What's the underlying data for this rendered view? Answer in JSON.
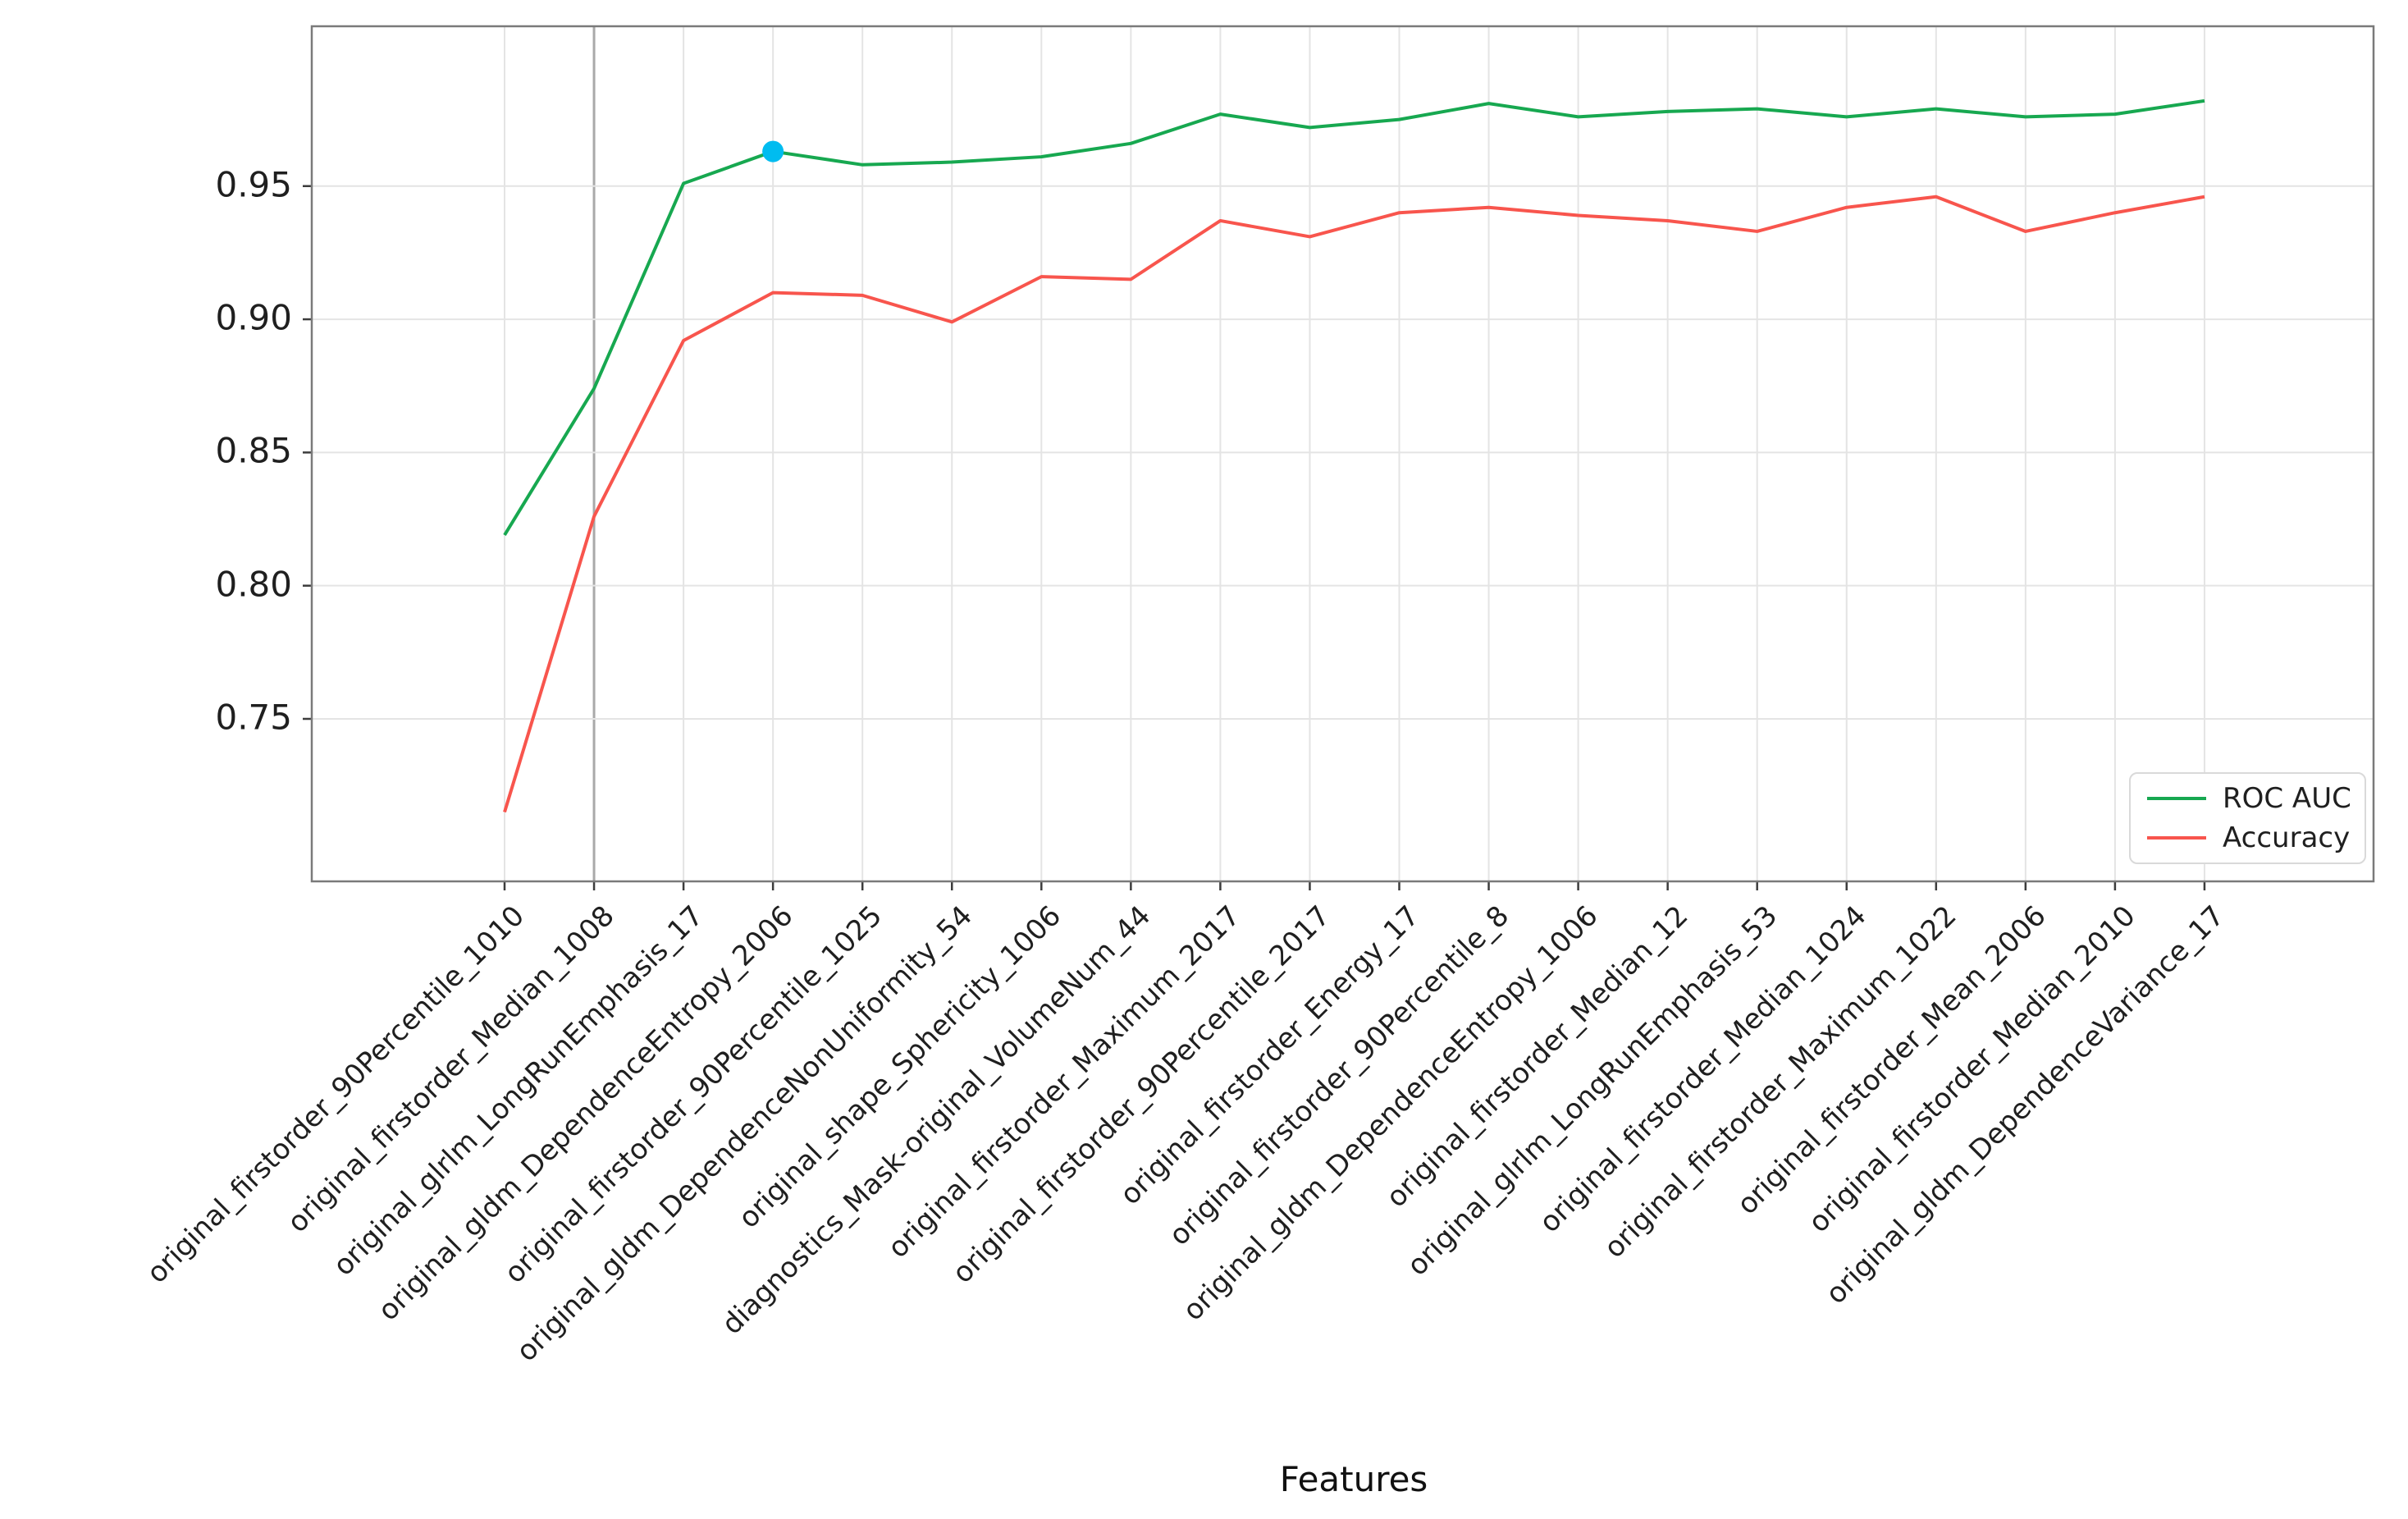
{
  "chart_data": {
    "type": "line",
    "title": "",
    "xlabel": "Features",
    "ylabel": "",
    "categories": [
      "original_firstorder_90Percentile_1010",
      "original_firstorder_Median_1008",
      "original_glrlm_LongRunEmphasis_17",
      "original_gldm_DependenceEntropy_2006",
      "original_firstorder_90Percentile_1025",
      "original_gldm_DependenceNonUniformity_54",
      "original_shape_Sphericity_1006",
      "diagnostics_Mask-original_VolumeNum_44",
      "original_firstorder_Maximum_2017",
      "original_firstorder_90Percentile_2017",
      "original_firstorder_Energy_17",
      "original_firstorder_90Percentile_8",
      "original_gldm_DependenceEntropy_1006",
      "original_firstorder_Median_12",
      "original_glrlm_LongRunEmphasis_53",
      "original_firstorder_Median_1024",
      "original_firstorder_Maximum_1022",
      "original_firstorder_Mean_2006",
      "original_firstorder_Median_2010",
      "original_gldm_DependenceVariance_17"
    ],
    "series": [
      {
        "name": "ROC AUC",
        "color": "#17a850",
        "values": [
          0.819,
          0.874,
          0.951,
          0.963,
          0.958,
          0.959,
          0.961,
          0.966,
          0.977,
          0.972,
          0.975,
          0.981,
          0.976,
          0.978,
          0.979,
          0.976,
          0.979,
          0.976,
          0.977,
          0.982
        ]
      },
      {
        "name": "Accuracy",
        "color": "#f8554d",
        "values": [
          0.715,
          0.826,
          0.892,
          0.91,
          0.909,
          0.899,
          0.916,
          0.915,
          0.937,
          0.931,
          0.94,
          0.942,
          0.939,
          0.937,
          0.933,
          0.942,
          0.946,
          0.933,
          0.94,
          0.946
        ]
      }
    ],
    "highlight_point": {
      "series": "ROC AUC",
      "index": 3,
      "value": 0.963,
      "color": "#00bcf0"
    },
    "yticks": [
      "0.75",
      "0.80",
      "0.85",
      "0.90",
      "0.95"
    ],
    "ytick_values": [
      0.75,
      0.8,
      0.85,
      0.9,
      0.95
    ],
    "ylim": [
      0.689,
      1.01
    ],
    "grid": true,
    "emphasized_gridline_index": 1,
    "legend_position": "lower right",
    "colors": {
      "gridline": "#e4e4e4",
      "gridline_emphasized": "#a9a9a9",
      "frame": "#7a7a7a",
      "tick": "#3c3c3c",
      "text": "#1f1f1f"
    }
  },
  "legend": {
    "entries": [
      {
        "label": "ROC AUC"
      },
      {
        "label": "Accuracy"
      }
    ]
  }
}
